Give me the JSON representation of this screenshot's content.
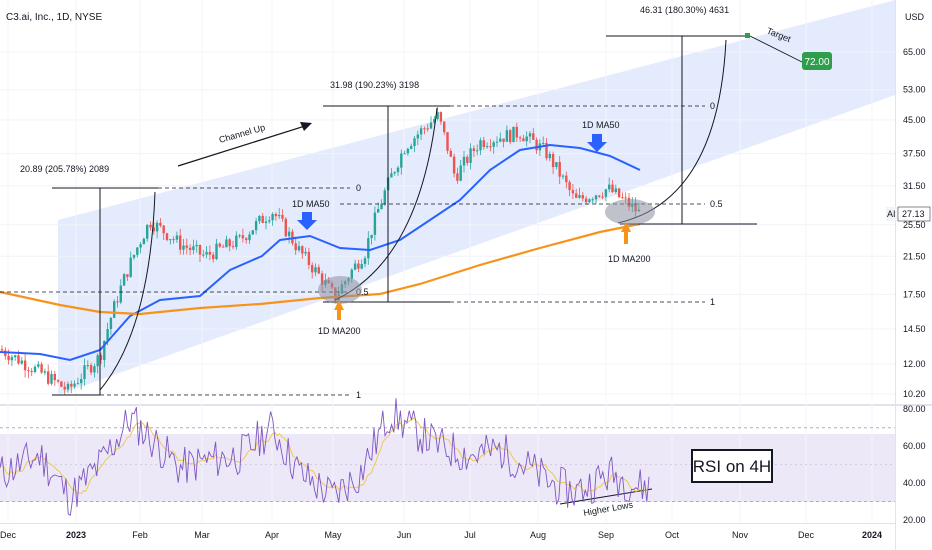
{
  "chart_data": [
    {
      "type": "candlestick",
      "title": "C3.ai, Inc., 1D, NYSE",
      "currency": "USD",
      "x_tick_labels": [
        "Dec",
        "2023",
        "Feb",
        "Mar",
        "Apr",
        "May",
        "Jun",
        "Jul",
        "Aug",
        "Sep",
        "Oct",
        "Nov",
        "Dec",
        "2024"
      ],
      "y_tick_labels": [
        "65.00",
        "53.00",
        "45.00",
        "37.50",
        "31.50",
        "25.50",
        "21.50",
        "17.50",
        "14.50",
        "12.00",
        "10.20"
      ],
      "y_scale": "log",
      "current_price_symbol": "AI",
      "current_price": "27.13",
      "candles_approx": [
        {
          "t": "Dec",
          "close": 13.0
        },
        {
          "t": "2023",
          "close": 10.4
        },
        {
          "t": "mid-Jan",
          "close": 12.5
        },
        {
          "t": "Feb",
          "close": 26.0
        },
        {
          "t": "mid-Feb",
          "close": 23.0
        },
        {
          "t": "Mar",
          "close": 21.5
        },
        {
          "t": "mid-Mar",
          "close": 23.5
        },
        {
          "t": "Apr",
          "close": 27.5
        },
        {
          "t": "mid-Apr",
          "close": 22.0
        },
        {
          "t": "May",
          "close": 17.2
        },
        {
          "t": "mid-May",
          "close": 22.0
        },
        {
          "t": "Jun",
          "close": 39.0
        },
        {
          "t": "mid-Jun",
          "close": 46.0
        },
        {
          "t": "late-Jun",
          "close": 33.0
        },
        {
          "t": "Jul",
          "close": 40.0
        },
        {
          "t": "mid-Jul",
          "close": 42.0
        },
        {
          "t": "Aug",
          "close": 38.0
        },
        {
          "t": "mid-Aug",
          "close": 29.0
        },
        {
          "t": "Sep",
          "close": 31.0
        },
        {
          "t": "mid-Sep",
          "close": 27.1
        }
      ],
      "series": [
        {
          "name": "1D MA50",
          "color": "#2962ff"
        },
        {
          "name": "1D MA200",
          "color": "#f7931a"
        }
      ],
      "annotations": {
        "channel_label": "Channel Up",
        "rise_1": "20.89 (205.78%) 2089",
        "rise_2": "31.98 (190.23%) 3198",
        "rise_3": "46.31 (180.30%) 4631",
        "target_label": "Target",
        "target_value": "72.00",
        "fib_0": "0",
        "fib_05": "0.5",
        "fib_1": "1",
        "ma50_label": "1D MA50",
        "ma200_label": "1D MA200"
      },
      "colors": {
        "up": "#26a69a",
        "down": "#ef5350",
        "channel": "#dbe4fb",
        "target_box": "#2e9e4a"
      }
    },
    {
      "type": "line",
      "title": "RSI on 4H",
      "y_tick_labels": [
        "80.00",
        "60.00",
        "40.00",
        "20.00"
      ],
      "ylim": [
        20,
        85
      ],
      "band": [
        30,
        70
      ],
      "series": [
        {
          "name": "RSI",
          "color": "#7e57c2"
        },
        {
          "name": "RSI MA",
          "color": "#f2c94c"
        }
      ],
      "annotations": {
        "trend_label": "Higher Lows"
      }
    }
  ]
}
